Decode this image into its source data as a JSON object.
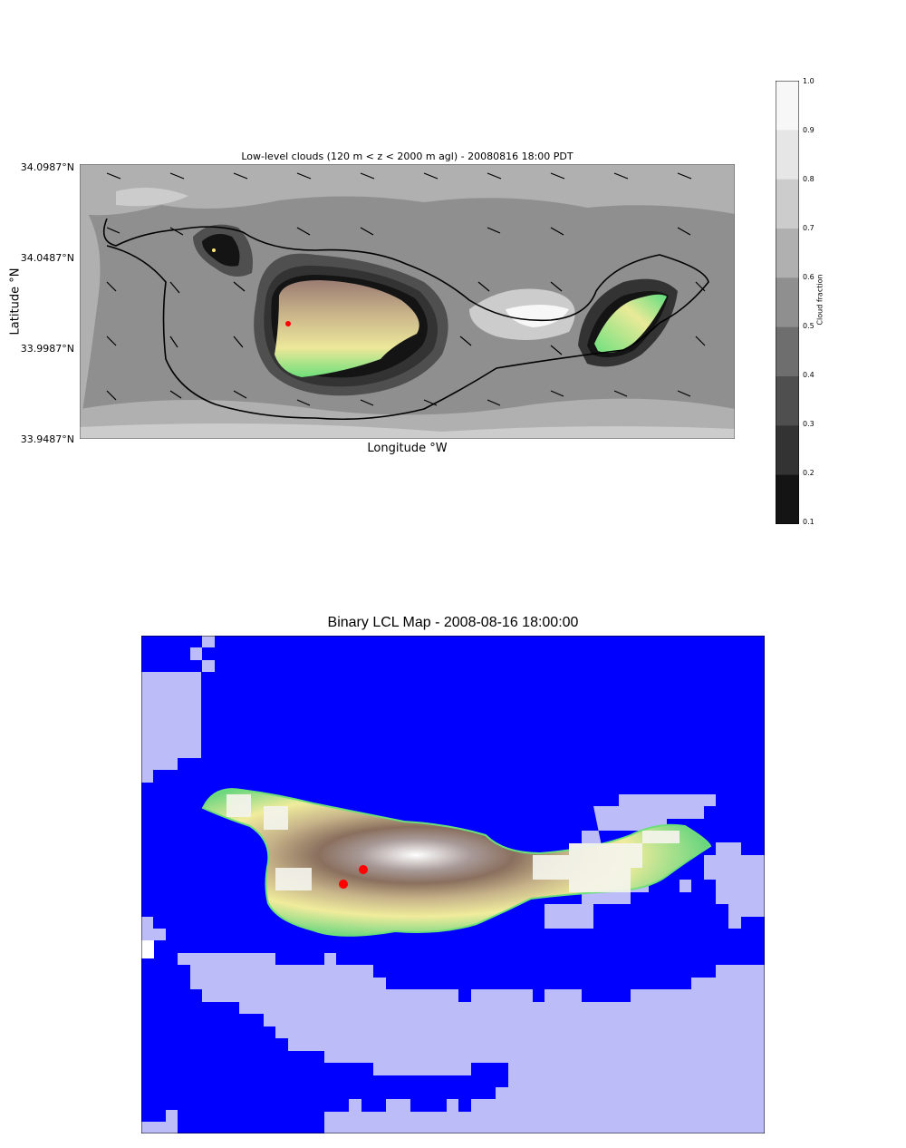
{
  "top_map": {
    "title": "Low-level clouds (120 m < z < 2000 m agl) - 20080816 18:00 PDT",
    "ylabel": "Latitude °N",
    "xlabel": "Longitude °W",
    "yticks": [
      "34.0987°N",
      "34.0487°N",
      "33.9987°N",
      "33.9487°N"
    ],
    "colorbar": {
      "label": "Cloud fraction",
      "ticks": [
        "1.0",
        "0.9",
        "0.8",
        "0.7",
        "0.6",
        "0.5",
        "0.4",
        "0.3",
        "0.2",
        "0.1"
      ],
      "colors": [
        "#f7f7f7",
        "#e6e6e6",
        "#cccccc",
        "#b0b0b0",
        "#8f8f8f",
        "#6e6e6e",
        "#4f4f4f",
        "#333333",
        "#141414"
      ]
    },
    "marker_color": "#ff0000"
  },
  "bottom_map": {
    "title": "Binary LCL Map - 2008-08-16 18:00:00",
    "colors": {
      "lcl_below": "#0000ff",
      "lcl_above": "#bcbcf8",
      "marker": "#ff0000"
    }
  }
}
